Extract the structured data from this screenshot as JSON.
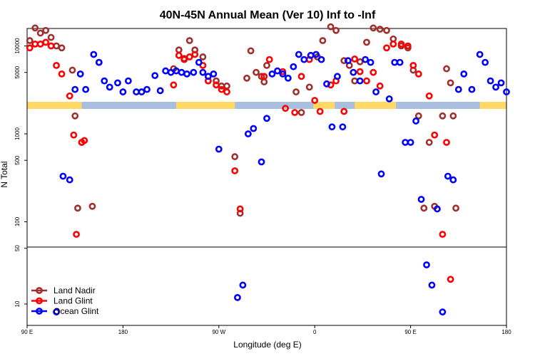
{
  "chart_data": {
    "type": "scatter",
    "title": "40N-45N Annual Mean (Ver 10)   Inf to -Inf",
    "xlabel": "Longitude (deg E)",
    "ylabel": "N Total",
    "x_axis": {
      "range": [
        90,
        450
      ],
      "ticks": [
        90,
        162,
        234,
        306,
        378,
        450
      ],
      "tick_labels": [
        "90 E",
        "180",
        "90 W",
        "0",
        "90 E",
        "180"
      ]
    },
    "y_axis": {
      "scale": "log",
      "break_at": 50,
      "upper_ticks": [
        100,
        500,
        1000,
        5000,
        10000
      ],
      "lower_ticks": [
        10,
        50
      ]
    },
    "land_ocean_strip": {
      "land_color": "#ffd966",
      "ocean_color": "#a8bfe0",
      "land_intervals": [
        [
          90,
          131
        ],
        [
          202,
          246
        ],
        [
          305,
          321
        ],
        [
          336,
          367
        ],
        [
          430,
          450
        ]
      ]
    },
    "series": [
      {
        "name": "Land Nadir",
        "color": "#a0302d",
        "x": [
          92,
          96,
          100,
          104,
          108,
          112,
          116,
          124,
          126,
          128,
          131,
          139,
          144,
          200,
          204,
          208,
          212,
          216,
          222,
          226,
          232,
          236,
          240,
          246,
          250,
          255,
          258,
          262,
          266,
          268,
          270,
          292,
          296,
          302,
          308,
          312,
          318,
          322,
          328,
          332,
          336,
          340,
          345,
          350,
          355,
          360,
          365,
          371,
          376,
          380,
          384,
          388,
          392,
          396,
          402,
          405,
          408,
          410,
          412
        ],
        "y": [
          11500,
          16000,
          14000,
          15000,
          12500,
          10000,
          9500,
          5300,
          1600,
          143,
          800,
          150,
          6500,
          5500,
          9000,
          7200,
          11500,
          9000,
          7500,
          4000,
          4000,
          3500,
          3500,
          550,
          125,
          4300,
          8800,
          5000,
          4500,
          3900,
          6000,
          3000,
          1750,
          3400,
          7500,
          11500,
          16500,
          15000,
          6800,
          6000,
          4000,
          6600,
          11000,
          16000,
          15500,
          15000,
          12000,
          10000,
          9500,
          5300,
          1600,
          143,
          800,
          150,
          1600,
          5500,
          3800,
          1600,
          143
        ]
      },
      {
        "name": "Land Glint",
        "color": "#ff0000",
        "x": [
          92,
          96,
          100,
          104,
          108,
          112,
          116,
          122,
          125,
          127,
          131,
          133,
          200,
          204,
          208,
          212,
          216,
          222,
          226,
          232,
          236,
          240,
          246,
          250,
          268,
          272,
          282,
          284,
          291,
          296,
          302,
          306,
          310,
          318,
          322,
          328,
          336,
          340,
          345,
          350,
          355,
          360,
          365,
          371,
          376,
          380,
          384,
          392,
          396,
          402,
          405,
          408
        ],
        "y": [
          9500,
          10500,
          10500,
          11000,
          10000,
          6000,
          4800,
          2700,
          970,
          72,
          800,
          840,
          3600,
          7800,
          7000,
          7500,
          8000,
          6000,
          4000,
          3600,
          3200,
          3000,
          380,
          140,
          4500,
          7000,
          5100,
          1950,
          1750,
          4500,
          7000,
          2400,
          1800,
          3600,
          4000,
          1800,
          7100,
          5100,
          4000,
          5000,
          3500,
          9500,
          10500,
          10500,
          10000,
          6000,
          4800,
          2700,
          970,
          72,
          800,
          20
        ]
      },
      {
        "name": "Ocean Glint",
        "color": "#0000ff",
        "x": [
          112,
          117,
          122,
          126,
          130,
          134,
          140,
          144,
          148,
          152,
          158,
          162,
          166,
          172,
          176,
          180,
          186,
          190,
          194,
          198,
          202,
          206,
          210,
          215,
          219,
          222,
          226,
          230,
          234,
          248,
          252,
          256,
          260,
          266,
          270,
          274,
          278,
          282,
          286,
          290,
          294,
          298,
          303,
          307,
          311,
          315,
          319,
          323,
          327,
          331,
          335,
          340,
          344,
          348,
          352,
          356,
          362,
          366,
          370,
          374,
          378,
          382,
          386,
          390,
          394,
          398,
          402,
          406,
          410,
          414,
          418,
          424,
          430,
          434,
          438,
          442,
          446,
          450
        ],
        "y": [
          8,
          330,
          300,
          3200,
          4800,
          3200,
          8000,
          6500,
          4000,
          3400,
          3800,
          3000,
          4000,
          3000,
          3000,
          3200,
          4600,
          3100,
          5200,
          5000,
          5200,
          5000,
          4800,
          5000,
          6500,
          5000,
          4500,
          4800,
          670,
          12,
          17,
          1000,
          1150,
          480,
          1500,
          4800,
          5200,
          4800,
          4300,
          5800,
          8000,
          7000,
          7800,
          8000,
          7000,
          3700,
          1200,
          4500,
          1200,
          6800,
          5000,
          4000,
          7000,
          6500,
          3000,
          350,
          2500,
          6500,
          6500,
          800,
          800,
          1400,
          180,
          30,
          17,
          140,
          8,
          330,
          300,
          3200,
          4800,
          3200,
          8000,
          6500,
          4000,
          3400,
          3800,
          3000
        ]
      }
    ],
    "legend": {
      "position": "bottom-left",
      "entries": [
        "Land Nadir",
        "Land Glint",
        "Ocean Glint"
      ]
    }
  }
}
